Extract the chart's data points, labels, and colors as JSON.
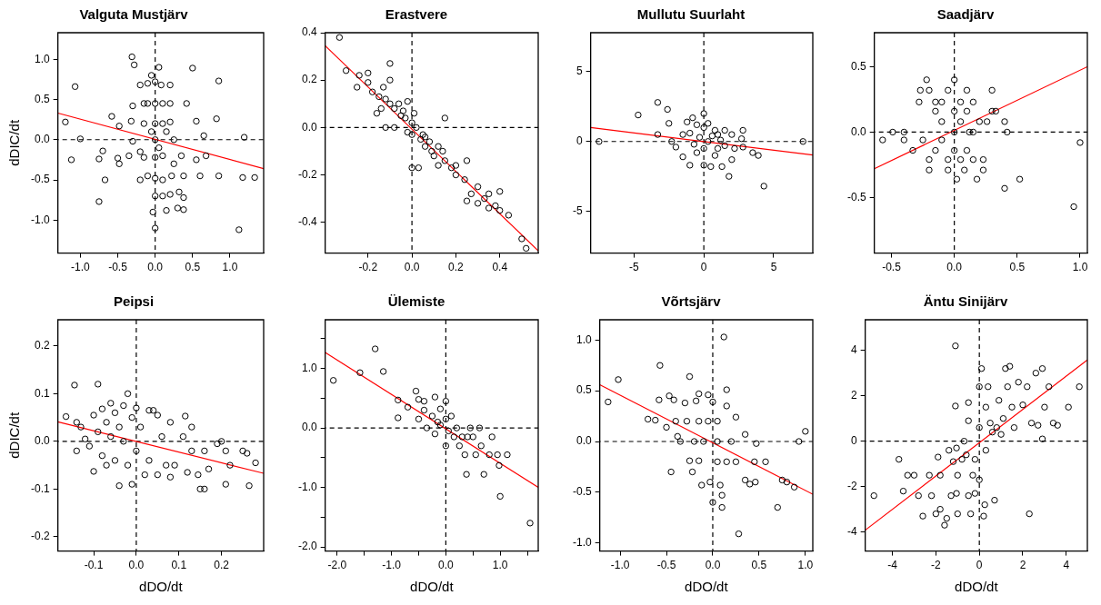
{
  "chart_data": [
    {
      "type": "scatter",
      "title": "Valguta Mustjärv",
      "ylabel": "dDIC/dt",
      "marker": "circle",
      "xlim": [
        -1.3,
        1.45
      ],
      "ylim": [
        -1.41,
        1.33
      ],
      "xticks": [
        {
          "value": -1,
          "label": "-1.0"
        },
        -0.5,
        {
          "value": 0,
          "label": "0.0"
        },
        0.5,
        {
          "value": 1,
          "label": "1.0"
        }
      ],
      "yticks": [
        {
          "value": -1,
          "label": "-1.0"
        },
        -0.5,
        {
          "value": 0,
          "label": "0.0"
        },
        0.5,
        {
          "value": 1,
          "label": "1.0"
        }
      ],
      "ref_lines": [
        {
          "axis": "x",
          "value": 0,
          "color": "#000000",
          "line_style": "dashed"
        },
        {
          "axis": "y",
          "value": 0,
          "color": "#000000",
          "line_style": "dashed"
        }
      ],
      "series": [
        {
          "type": "scatter",
          "color": "#000000",
          "x": [
            -1.2,
            -1.07,
            -1.0,
            -1.12,
            -0.75,
            -0.7,
            -0.75,
            -0.67,
            -0.58,
            -0.48,
            -0.5,
            -0.48,
            -0.35,
            -0.31,
            -0.28,
            -0.3,
            -0.32,
            -0.3,
            -0.2,
            -0.2,
            -0.15,
            -0.15,
            -0.15,
            -0.1,
            -0.1,
            -0.1,
            -0.05,
            -0.03,
            0.0,
            0.0,
            0.0,
            0.0,
            0.0,
            0.0,
            0.0,
            0.0,
            0.05,
            0.08,
            0.1,
            0.1,
            0.1,
            0.1,
            0.1,
            0.15,
            0.2,
            0.2,
            0.2,
            0.22,
            0.25,
            0.2,
            0.3,
            0.32,
            0.35,
            0.38,
            0.38,
            0.38,
            0.42,
            0.5,
            0.55,
            0.55,
            0.6,
            0.65,
            0.68,
            0.85,
            0.82,
            0.85,
            1.12,
            1.17,
            1.19,
            1.33,
            0.25,
            -0.05,
            0.05,
            0.15,
            -0.2
          ],
          "values": [
            0.22,
            0.66,
            0.01,
            -0.25,
            -0.77,
            -0.14,
            -0.24,
            -0.5,
            0.29,
            0.17,
            -0.23,
            -0.3,
            -0.2,
            1.03,
            0.93,
            0.42,
            0.23,
            -0.02,
            0.68,
            -0.5,
            0.45,
            0.2,
            -0.22,
            0.7,
            0.45,
            -0.45,
            0.8,
            -0.9,
            -1.1,
            0.72,
            0.45,
            0.2,
            0.0,
            -0.22,
            -0.48,
            -0.7,
            0.9,
            0.68,
            0.45,
            0.2,
            -0.2,
            -0.5,
            -0.7,
            -0.88,
            0.68,
            0.45,
            0.22,
            -0.45,
            -0.3,
            -0.68,
            -0.85,
            -0.65,
            -0.2,
            -0.45,
            -0.87,
            -0.72,
            0.45,
            0.89,
            0.23,
            -0.25,
            -0.45,
            0.05,
            -0.2,
            0.73,
            0.26,
            -0.45,
            -1.12,
            -0.47,
            0.03,
            -0.47,
            0.0,
            0.1,
            -0.1,
            0.1,
            -0.15
          ]
        },
        {
          "type": "line",
          "marker": "none",
          "color": "#ff0000",
          "x": [
            -1.3,
            1.45
          ],
          "values": [
            0.33,
            -0.36
          ]
        }
      ]
    },
    {
      "type": "scatter",
      "title": "Erastvere",
      "marker": "circle",
      "xlim": [
        -0.395,
        0.575
      ],
      "ylim": [
        -0.53,
        0.4
      ],
      "xticks": [
        -0.2,
        {
          "value": 0,
          "label": "0.0"
        },
        0.2,
        0.4
      ],
      "yticks": [
        -0.4,
        -0.2,
        {
          "value": 0,
          "label": "0.0"
        },
        0.2,
        0.4
      ],
      "ref_lines": [
        {
          "axis": "x",
          "value": 0,
          "color": "#000000",
          "line_style": "dashed"
        },
        {
          "axis": "y",
          "value": 0,
          "color": "#000000",
          "line_style": "dashed"
        }
      ],
      "series": [
        {
          "type": "scatter",
          "color": "#000000",
          "x": [
            -0.33,
            -0.3,
            -0.25,
            -0.24,
            -0.2,
            -0.2,
            -0.18,
            -0.16,
            -0.15,
            -0.13,
            -0.12,
            -0.12,
            -0.1,
            -0.1,
            -0.1,
            -0.08,
            -0.08,
            -0.06,
            -0.05,
            -0.04,
            -0.03,
            -0.02,
            -0.02,
            0.0,
            0.0,
            0.01,
            0.02,
            0.0,
            0.03,
            0.04,
            0.05,
            0.06,
            0.08,
            0.09,
            0.1,
            0.12,
            0.12,
            0.14,
            0.15,
            0.15,
            0.18,
            0.2,
            0.2,
            0.24,
            0.25,
            0.25,
            0.27,
            0.3,
            0.3,
            0.33,
            0.35,
            0.35,
            0.38,
            0.4,
            0.4,
            0.44,
            0.5,
            0.52,
            -0.14,
            0.06
          ],
          "values": [
            0.38,
            0.24,
            0.17,
            0.22,
            0.23,
            0.19,
            0.15,
            0.06,
            0.13,
            0.17,
            0.12,
            0.0,
            0.27,
            0.2,
            0.1,
            0.08,
            0.0,
            0.1,
            0.05,
            0.07,
            0.04,
            0.11,
            -0.02,
            0.02,
            -0.03,
            0.06,
            0.0,
            -0.17,
            -0.17,
            -0.05,
            -0.03,
            -0.08,
            -0.06,
            -0.1,
            -0.12,
            -0.08,
            -0.16,
            -0.1,
            0.04,
            -0.14,
            -0.17,
            -0.16,
            -0.2,
            -0.22,
            -0.14,
            -0.31,
            -0.28,
            -0.25,
            -0.32,
            -0.3,
            -0.28,
            -0.34,
            -0.33,
            -0.27,
            -0.35,
            -0.37,
            -0.47,
            -0.51,
            0.08,
            -0.04
          ]
        },
        {
          "type": "line",
          "marker": "none",
          "color": "#ff0000",
          "x": [
            -0.395,
            0.575
          ],
          "values": [
            0.345,
            -0.52
          ]
        }
      ]
    },
    {
      "type": "scatter",
      "title": "Mullutu Suurlaht",
      "marker": "circle",
      "xlim": [
        -8.1,
        7.8
      ],
      "ylim": [
        -8.0,
        7.8
      ],
      "xticks": [
        -5,
        0,
        5
      ],
      "yticks": [
        -5,
        0,
        5
      ],
      "ref_lines": [
        {
          "axis": "x",
          "value": 0,
          "color": "#000000",
          "line_style": "dashed"
        },
        {
          "axis": "y",
          "value": 0,
          "color": "#000000",
          "line_style": "dashed"
        }
      ],
      "series": [
        {
          "type": "scatter",
          "color": "#000000",
          "x": [
            -7.5,
            -4.7,
            -3.3,
            -2.6,
            -2.5,
            -3.3,
            -2.3,
            -2.0,
            -1.5,
            -1.5,
            -1.2,
            -1.0,
            -1.0,
            -0.8,
            -0.5,
            -0.5,
            -0.3,
            0.0,
            0.0,
            0.0,
            0.0,
            0.3,
            0.3,
            0.5,
            0.8,
            0.8,
            1.0,
            1.0,
            1.3,
            1.5,
            1.5,
            1.8,
            2.0,
            2.0,
            2.2,
            2.7,
            2.8,
            2.8,
            3.5,
            3.9,
            4.3,
            7.1,
            -0.7,
            0.6,
            1.2
          ],
          "values": [
            0.0,
            1.9,
            2.8,
            2.3,
            1.3,
            0.5,
            0.0,
            -0.4,
            0.5,
            -1.1,
            1.4,
            -1.7,
            0.6,
            1.7,
            1.2,
            -0.8,
            0.3,
            2.0,
            1.0,
            -0.5,
            -1.7,
            1.3,
            0.0,
            -1.8,
            0.8,
            -1.0,
            0.5,
            -0.5,
            -1.8,
            0.8,
            -0.3,
            -2.5,
            -1.3,
            0.5,
            -0.5,
            0.2,
            0.8,
            -0.4,
            -0.8,
            -1.0,
            -3.2,
            0.0,
            -0.2,
            0.4,
            0.1
          ]
        },
        {
          "type": "line",
          "marker": "none",
          "color": "#ff0000",
          "x": [
            -8.1,
            7.8
          ],
          "values": [
            1.0,
            -0.97
          ]
        }
      ]
    },
    {
      "type": "scatter",
      "title": "Saadjärv",
      "marker": "circle",
      "xlim": [
        -0.636,
        1.058
      ],
      "ylim": [
        -0.925,
        0.76
      ],
      "xticks": [
        -0.5,
        {
          "value": 0,
          "label": "0.0"
        },
        0.5,
        {
          "value": 1,
          "label": "1.0"
        }
      ],
      "yticks": [
        -0.5,
        {
          "value": 0,
          "label": "0.0"
        },
        0.5
      ],
      "ref_lines": [
        {
          "axis": "x",
          "value": 0,
          "color": "#000000",
          "line_style": "dashed"
        },
        {
          "axis": "y",
          "value": 0,
          "color": "#000000",
          "line_style": "dashed"
        }
      ],
      "series": [
        {
          "type": "scatter",
          "color": "#000000",
          "x": [
            -0.57,
            -0.49,
            -0.4,
            -0.4,
            -0.33,
            -0.28,
            -0.27,
            -0.25,
            -0.22,
            -0.2,
            -0.2,
            -0.2,
            -0.15,
            -0.15,
            -0.1,
            -0.1,
            -0.1,
            -0.05,
            -0.05,
            -0.05,
            0.0,
            0.0,
            0.0,
            0.0,
            0.02,
            0.05,
            0.05,
            0.05,
            0.08,
            0.1,
            0.1,
            0.1,
            0.12,
            0.15,
            0.15,
            0.18,
            0.2,
            0.23,
            0.23,
            0.26,
            0.3,
            0.3,
            0.33,
            0.4,
            0.42,
            0.4,
            0.52,
            0.95,
            1.0,
            0.15,
            -0.15
          ],
          "values": [
            -0.06,
            0.0,
            0.0,
            -0.06,
            -0.14,
            0.23,
            0.32,
            -0.06,
            0.4,
            0.32,
            -0.29,
            -0.21,
            0.16,
            -0.14,
            0.23,
            0.08,
            -0.06,
            0.32,
            -0.21,
            -0.29,
            0.4,
            0.16,
            0.0,
            -0.14,
            -0.36,
            0.23,
            0.08,
            -0.21,
            -0.29,
            0.32,
            0.16,
            -0.14,
            0.0,
            0.23,
            -0.21,
            -0.36,
            0.08,
            -0.21,
            -0.29,
            0.08,
            0.32,
            0.16,
            0.16,
            0.08,
            0.0,
            -0.43,
            -0.36,
            -0.57,
            -0.08,
            0.0,
            0.23
          ]
        },
        {
          "type": "line",
          "marker": "none",
          "color": "#ff0000",
          "x": [
            -0.636,
            1.058
          ],
          "values": [
            -0.28,
            0.5
          ]
        }
      ]
    },
    {
      "type": "scatter",
      "title": "Peipsi",
      "xlabel": "dDO/dt",
      "ylabel": "dDIC/dt",
      "marker": "circle",
      "xlim": [
        -0.184,
        0.299
      ],
      "ylim": [
        -0.23,
        0.255
      ],
      "xticks": [
        -0.1,
        {
          "value": 0,
          "label": "0.0"
        },
        0.1,
        0.2
      ],
      "yticks": [
        -0.2,
        -0.1,
        {
          "value": 0,
          "label": "0.0"
        },
        0.1,
        0.2
      ],
      "ref_lines": [
        {
          "axis": "x",
          "value": 0,
          "color": "#000000",
          "line_style": "dashed"
        },
        {
          "axis": "y",
          "value": 0,
          "color": "#000000",
          "line_style": "dashed"
        }
      ],
      "series": [
        {
          "type": "scatter",
          "color": "#000000",
          "x": [
            -0.165,
            -0.145,
            -0.14,
            -0.14,
            -0.13,
            -0.12,
            -0.11,
            -0.1,
            -0.1,
            -0.09,
            -0.09,
            -0.08,
            -0.08,
            -0.07,
            -0.07,
            -0.06,
            -0.06,
            -0.05,
            -0.05,
            -0.04,
            -0.04,
            -0.03,
            -0.03,
            -0.02,
            -0.02,
            -0.01,
            -0.01,
            0.0,
            0.0,
            0.01,
            0.02,
            0.03,
            0.03,
            0.04,
            0.05,
            0.05,
            0.06,
            0.07,
            0.08,
            0.08,
            0.09,
            0.11,
            0.115,
            0.12,
            0.13,
            0.13,
            0.145,
            0.15,
            0.16,
            0.16,
            0.17,
            0.19,
            0.2,
            0.21,
            0.21,
            0.22,
            0.25,
            0.26,
            0.265,
            0.28
          ],
          "values": [
            0.052,
            0.118,
            0.04,
            -0.02,
            0.03,
            0.005,
            -0.01,
            0.055,
            -0.063,
            0.12,
            0.02,
            0.068,
            -0.03,
            0.04,
            -0.05,
            0.08,
            0.01,
            0.06,
            -0.04,
            0.03,
            -0.093,
            0.075,
            0.0,
            0.1,
            -0.05,
            0.05,
            -0.09,
            0.07,
            -0.02,
            0.03,
            -0.07,
            0.065,
            -0.04,
            0.065,
            0.055,
            -0.07,
            0.01,
            -0.05,
            0.04,
            -0.075,
            -0.05,
            0.01,
            0.053,
            -0.065,
            0.03,
            -0.02,
            -0.07,
            -0.1,
            -0.1,
            -0.02,
            -0.058,
            -0.005,
            0.0,
            -0.09,
            -0.02,
            -0.05,
            -0.02,
            -0.025,
            -0.093,
            -0.045
          ]
        },
        {
          "type": "line",
          "marker": "none",
          "color": "#ff0000",
          "x": [
            -0.184,
            0.299
          ],
          "values": [
            0.041,
            -0.067
          ]
        }
      ]
    },
    {
      "type": "scatter",
      "title": "Ülemiste",
      "xlabel": "dDO/dt",
      "marker": "circle",
      "xlim": [
        -2.22,
        1.7
      ],
      "ylim": [
        -2.07,
        1.82
      ],
      "xticks": [
        {
          "value": -2,
          "label": "-2.0"
        },
        {
          "value": -1.5,
          "label": null
        },
        {
          "value": -1,
          "label": "-1.0"
        },
        {
          "value": -0.5,
          "label": null
        },
        {
          "value": 0,
          "label": "0.0"
        },
        {
          "value": 0.5,
          "label": null
        },
        {
          "value": 1,
          "label": "1.0"
        },
        {
          "value": 1.5,
          "label": null
        }
      ],
      "yticks": [
        {
          "value": -2,
          "label": "-2.0"
        },
        {
          "value": -1.5,
          "label": null
        },
        {
          "value": -1,
          "label": "-1.0"
        },
        {
          "value": -0.5,
          "label": null
        },
        {
          "value": 0,
          "label": "0.0"
        },
        {
          "value": 0.5,
          "label": null
        },
        {
          "value": 1,
          "label": "1.0"
        },
        {
          "value": 1.5,
          "label": null
        }
      ],
      "ref_lines": [
        {
          "axis": "x",
          "value": 0,
          "color": "#000000",
          "line_style": "dashed"
        },
        {
          "axis": "y",
          "value": 0,
          "color": "#000000",
          "line_style": "dashed"
        }
      ],
      "series": [
        {
          "type": "scatter",
          "color": "#000000",
          "x": [
            -2.07,
            -1.58,
            -1.3,
            -1.15,
            -0.88,
            -0.88,
            -0.7,
            -0.55,
            -0.5,
            -0.5,
            -0.4,
            -0.4,
            -0.35,
            -0.25,
            -0.2,
            -0.2,
            -0.1,
            -0.1,
            0.0,
            0.0,
            0.0,
            0.05,
            0.1,
            0.15,
            0.2,
            0.25,
            0.3,
            0.35,
            0.38,
            0.45,
            0.5,
            0.55,
            0.62,
            0.65,
            0.7,
            0.8,
            0.85,
            0.95,
            0.98,
            1.0,
            1.13,
            1.55,
            0.4,
            -0.15
          ],
          "values": [
            0.8,
            0.93,
            1.33,
            0.95,
            0.47,
            0.17,
            0.35,
            0.62,
            0.48,
            0.15,
            0.45,
            0.3,
            0.0,
            0.2,
            0.52,
            -0.1,
            0.32,
            0.05,
            0.45,
            0.15,
            -0.3,
            -0.05,
            0.2,
            -0.15,
            0.0,
            -0.3,
            -0.15,
            -0.45,
            -0.78,
            0.0,
            -0.15,
            -0.45,
            0.0,
            -0.3,
            -0.78,
            -0.45,
            -0.15,
            -0.45,
            -0.63,
            -1.15,
            -0.45,
            -1.6,
            -0.15,
            0.1
          ]
        },
        {
          "type": "line",
          "marker": "none",
          "color": "#ff0000",
          "x": [
            -2.22,
            1.7
          ],
          "values": [
            1.27,
            -1.0
          ]
        }
      ]
    },
    {
      "type": "scatter",
      "title": "Võrtsjärv",
      "xlabel": "dDO/dt",
      "marker": "circle",
      "xlim": [
        -1.22,
        1.08
      ],
      "ylim": [
        -1.08,
        1.2
      ],
      "xticks": [
        {
          "value": -1,
          "label": "-1.0"
        },
        -0.5,
        {
          "value": 0,
          "label": "0.0"
        },
        0.5,
        {
          "value": 1,
          "label": "1.0"
        }
      ],
      "yticks": [
        {
          "value": -1,
          "label": "-1.0"
        },
        -0.5,
        {
          "value": 0,
          "label": "0.0"
        },
        0.5,
        {
          "value": 1,
          "label": "1.0"
        }
      ],
      "ref_lines": [
        {
          "axis": "x",
          "value": 0,
          "color": "#000000",
          "line_style": "dashed"
        },
        {
          "axis": "y",
          "value": 0,
          "color": "#000000",
          "line_style": "dashed"
        }
      ],
      "series": [
        {
          "type": "scatter",
          "color": "#000000",
          "x": [
            -1.13,
            -1.02,
            -0.7,
            -0.62,
            -0.57,
            -0.58,
            -0.5,
            -0.47,
            -0.45,
            -0.42,
            -0.4,
            -0.38,
            -0.35,
            -0.3,
            -0.28,
            -0.25,
            -0.25,
            -0.22,
            -0.2,
            -0.18,
            -0.15,
            -0.15,
            -0.15,
            -0.12,
            -0.1,
            -0.05,
            -0.05,
            -0.03,
            0.0,
            0.0,
            0.05,
            0.05,
            0.05,
            0.08,
            0.1,
            0.1,
            0.12,
            0.15,
            0.15,
            0.15,
            0.2,
            0.25,
            0.25,
            0.28,
            0.35,
            0.35,
            0.4,
            0.45,
            0.46,
            0.47,
            0.57,
            0.7,
            0.75,
            0.8,
            0.88,
            0.93,
            1.0
          ],
          "values": [
            0.39,
            0.61,
            0.22,
            0.21,
            0.75,
            0.41,
            0.14,
            0.45,
            -0.3,
            0.41,
            0.2,
            0.05,
            0.0,
            0.38,
            0.2,
            0.64,
            -0.19,
            -0.3,
            0.0,
            0.4,
            0.47,
            0.2,
            -0.19,
            -0.43,
            0.0,
            0.46,
            0.2,
            -0.4,
            0.39,
            -0.6,
            0.2,
            0.0,
            -0.2,
            -0.43,
            -0.53,
            -0.65,
            1.03,
            0.51,
            0.35,
            -0.2,
            0.0,
            0.24,
            -0.2,
            -0.91,
            0.07,
            -0.38,
            -0.42,
            -0.2,
            -0.4,
            -0.02,
            -0.2,
            -0.65,
            -0.38,
            -0.4,
            -0.45,
            0.0,
            0.1
          ]
        },
        {
          "type": "line",
          "marker": "none",
          "color": "#ff0000",
          "x": [
            -1.22,
            1.08
          ],
          "values": [
            0.56,
            -0.52
          ]
        }
      ]
    },
    {
      "type": "scatter",
      "title": "Äntu Sinijärv",
      "xlabel": "dDO/dt",
      "marker": "circle",
      "xlim": [
        -5.25,
        4.97
      ],
      "ylim": [
        -4.84,
        5.35
      ],
      "xticks": [
        -4,
        -2,
        0,
        2,
        4
      ],
      "yticks": [
        -4,
        -2,
        0,
        2,
        4
      ],
      "ref_lines": [
        {
          "axis": "x",
          "value": 0,
          "color": "#000000",
          "line_style": "dashed"
        },
        {
          "axis": "y",
          "value": 0,
          "color": "#000000",
          "line_style": "dashed"
        }
      ],
      "series": [
        {
          "type": "scatter",
          "color": "#000000",
          "x": [
            -4.85,
            -3.7,
            -3.5,
            -3.3,
            -3.0,
            -2.8,
            -2.6,
            -2.3,
            -2.2,
            -2.0,
            -1.9,
            -1.8,
            -1.8,
            -1.6,
            -1.5,
            -1.4,
            -1.3,
            -1.2,
            -1.0,
            -1.05,
            -1.0,
            -1.05,
            -1.1,
            -1.1,
            -0.8,
            -0.6,
            -0.5,
            -0.4,
            -0.3,
            -0.5,
            -0.5,
            -0.2,
            -0.2,
            0.0,
            0.0,
            0.0,
            0.1,
            0.2,
            0.25,
            0.3,
            0.3,
            0.4,
            0.5,
            0.7,
            0.8,
            0.9,
            1.0,
            1.1,
            1.2,
            1.3,
            1.4,
            1.5,
            1.6,
            1.8,
            2.0,
            2.2,
            2.3,
            2.4,
            2.6,
            2.7,
            2.9,
            2.9,
            3.0,
            3.2,
            3.4,
            3.6,
            4.1,
            4.6,
            -0.7,
            0.6
          ],
          "values": [
            -2.4,
            -0.8,
            -2.2,
            -1.5,
            -1.5,
            -2.4,
            -3.3,
            -1.5,
            -2.4,
            -3.2,
            -0.7,
            -1.5,
            -3.0,
            -3.7,
            -3.4,
            -0.4,
            -2.4,
            -0.9,
            -3.2,
            -2.3,
            -1.5,
            -0.3,
            1.55,
            4.2,
            -0.8,
            -0.6,
            -2.4,
            -3.2,
            -1.5,
            1.7,
            0.9,
            -0.8,
            -2.3,
            -1.7,
            2.4,
            0.6,
            3.2,
            -3.3,
            -2.8,
            1.5,
            -0.4,
            2.4,
            0.8,
            -2.6,
            0.6,
            1.8,
            0.3,
            1.0,
            3.2,
            2.4,
            3.3,
            1.5,
            0.6,
            2.6,
            1.6,
            2.4,
            -3.2,
            0.8,
            3.0,
            0.7,
            3.2,
            0.1,
            1.5,
            2.4,
            0.8,
            0.7,
            1.5,
            2.4,
            0.0,
            0.4
          ]
        },
        {
          "type": "line",
          "marker": "none",
          "color": "#ff0000",
          "x": [
            -5.25,
            4.97
          ],
          "values": [
            -3.92,
            3.58
          ]
        }
      ]
    }
  ]
}
